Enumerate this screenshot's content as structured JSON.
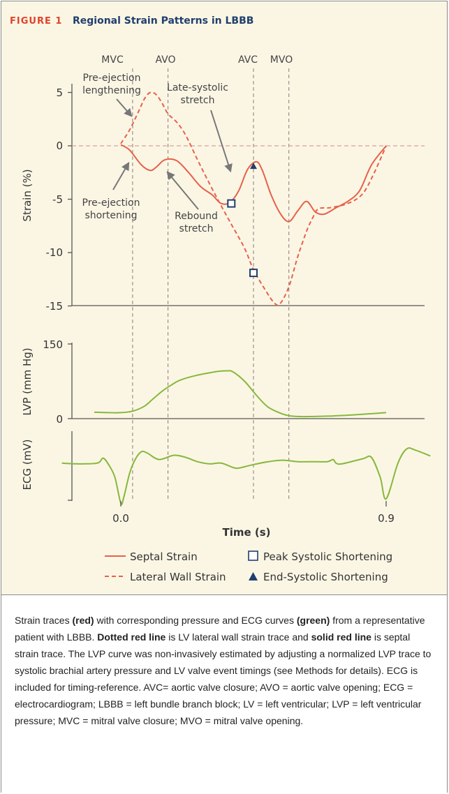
{
  "figure": {
    "label": "FIGURE 1",
    "title": "Regional Strain Patterns in LBBB"
  },
  "colors": {
    "strain": "#e8604a",
    "pressure_ecg": "#86b83c",
    "events": "#8a7a7a",
    "marker": "#1f3f6e",
    "header_bg": "#fbf6e4",
    "label_red": "#e0422b",
    "title_blue": "#1f3f6e"
  },
  "chart_data": [
    {
      "type": "line",
      "xlabel": "",
      "ylabel": "Strain (%)",
      "x_axis": "time (s)",
      "xlim": [
        -0.2,
        1.08
      ],
      "ylim": [
        -15,
        6
      ],
      "yticks": [
        5,
        0,
        -5,
        -10,
        -15
      ],
      "ytick_labels": [
        "5",
        "0",
        "-5",
        "-10",
        "-15"
      ],
      "zero_line": true,
      "events": [
        {
          "label": "MVC",
          "x": 0.04
        },
        {
          "label": "AVO",
          "x": 0.16
        },
        {
          "label": "AVC",
          "x": 0.45
        },
        {
          "label": "MVO",
          "x": 0.57
        }
      ],
      "series": [
        {
          "name": "Septal Strain",
          "style": "solid",
          "x": [
            0.0,
            0.03,
            0.07,
            0.1,
            0.12,
            0.15,
            0.19,
            0.23,
            0.27,
            0.31,
            0.34,
            0.37,
            0.4,
            0.43,
            0.46,
            0.48,
            0.51,
            0.54,
            0.57,
            0.6,
            0.63,
            0.66,
            0.69,
            0.73,
            0.77,
            0.81,
            0.85,
            0.9
          ],
          "values": [
            0.1,
            -0.4,
            -1.8,
            -2.3,
            -2.0,
            -1.3,
            -1.4,
            -2.5,
            -3.8,
            -4.6,
            -5.4,
            -5.3,
            -4.2,
            -2.2,
            -1.5,
            -2.3,
            -4.6,
            -6.3,
            -7.1,
            -6.1,
            -5.2,
            -6.2,
            -6.4,
            -5.8,
            -5.2,
            -4.2,
            -1.8,
            0.0
          ]
        },
        {
          "name": "Lateral Wall Strain",
          "style": "dashed",
          "x": [
            0.0,
            0.03,
            0.06,
            0.08,
            0.1,
            0.12,
            0.14,
            0.16,
            0.19,
            0.22,
            0.26,
            0.3,
            0.34,
            0.38,
            0.42,
            0.45,
            0.49,
            0.52,
            0.54,
            0.57,
            0.6,
            0.63,
            0.65,
            0.67,
            0.71,
            0.77,
            0.82,
            0.86,
            0.9
          ],
          "values": [
            0.2,
            1.5,
            3.2,
            4.4,
            5.0,
            4.8,
            4.0,
            3.0,
            2.2,
            1.0,
            -1.3,
            -3.5,
            -5.6,
            -7.6,
            -9.6,
            -11.6,
            -13.5,
            -14.7,
            -14.8,
            -13.2,
            -10.4,
            -8.0,
            -6.8,
            -5.9,
            -5.8,
            -5.4,
            -4.5,
            -2.5,
            0.0
          ]
        }
      ],
      "markers": [
        {
          "kind": "peak-systolic",
          "series": "Septal Strain",
          "x": 0.375,
          "y": -5.4
        },
        {
          "kind": "end-systolic",
          "series": "Septal Strain",
          "x": 0.45,
          "y": -1.9
        },
        {
          "kind": "peak-systolic",
          "series": "Lateral Wall Strain",
          "x": 0.45,
          "y": -11.9
        }
      ],
      "annotations": [
        {
          "text": "Pre-ejection\nlengthening"
        },
        {
          "text": "Pre-ejection\nshortening"
        },
        {
          "text": "Late-systolic\nstretch"
        },
        {
          "text": "Rebound\nstretch"
        }
      ]
    },
    {
      "type": "line",
      "ylabel": "LVP (mm Hg)",
      "ylim": [
        0,
        150
      ],
      "yticks": [
        150,
        0
      ],
      "ytick_labels": [
        "150",
        "0"
      ],
      "series": [
        {
          "name": "",
          "x": [
            -0.09,
            -0.04,
            0.0,
            0.04,
            0.08,
            0.11,
            0.14,
            0.17,
            0.2,
            0.25,
            0.3,
            0.33,
            0.36,
            0.38,
            0.42,
            0.46,
            0.5,
            0.55,
            0.58,
            0.62,
            0.7,
            0.8,
            0.9
          ],
          "values": [
            13,
            12,
            12,
            15,
            25,
            40,
            55,
            67,
            77,
            86,
            92,
            95,
            96,
            94,
            75,
            47,
            23,
            9,
            5,
            4,
            5,
            8,
            12
          ]
        }
      ]
    },
    {
      "type": "line",
      "ylabel": "ECG (mV)",
      "xlabel": "Time (s)",
      "xticks": [
        0.0,
        0.9
      ],
      "xtick_labels": [
        "0.0",
        "0.9"
      ],
      "series": [
        {
          "name": "",
          "x": [
            -0.2,
            -0.15,
            -0.08,
            -0.06,
            -0.04,
            -0.02,
            0.0,
            0.01,
            0.03,
            0.05,
            0.07,
            0.09,
            0.13,
            0.18,
            0.22,
            0.26,
            0.3,
            0.34,
            0.38,
            0.4,
            0.44,
            0.5,
            0.55,
            0.6,
            0.65,
            0.7,
            0.72,
            0.73,
            0.75,
            0.82,
            0.85,
            0.88,
            0.9,
            0.94,
            0.97,
            1.0,
            1.05
          ],
          "values": [
            0.5,
            0.45,
            0.5,
            0.85,
            0.35,
            -0.5,
            -2.3,
            -1.9,
            -0.2,
            0.8,
            1.3,
            1.2,
            0.75,
            1.05,
            0.9,
            0.6,
            0.45,
            0.5,
            0.2,
            0.15,
            0.35,
            0.6,
            0.7,
            0.6,
            0.6,
            0.6,
            0.75,
            0.5,
            0.45,
            0.8,
            0.9,
            -0.5,
            -2.0,
            0.5,
            1.5,
            1.4,
            1.0
          ]
        }
      ]
    }
  ],
  "axes": {
    "strain_ylabel": "Strain (%)",
    "lvp_ylabel": "LVP (mm Hg)",
    "ecg_ylabel": "ECG (mV)",
    "time_label": "Time (s)",
    "x0_label": "0.0",
    "x1_label": "0.9",
    "y5": "5",
    "y0": "0",
    "ym5": "-5",
    "ym10": "-10",
    "ym15": "-15",
    "lvp150": "150",
    "lvp0": "0"
  },
  "events": {
    "mvc": "MVC",
    "avo": "AVO",
    "avc": "AVC",
    "mvo": "MVO"
  },
  "annotations": {
    "pre_ej_len_1": "Pre-ejection",
    "pre_ej_len_2": "lengthening",
    "pre_ej_sh_1": "Pre-ejection",
    "pre_ej_sh_2": "shortening",
    "late_sys_1": "Late-systolic",
    "late_sys_2": "stretch",
    "rebound_1": "Rebound",
    "rebound_2": "stretch"
  },
  "legend": {
    "septal": "Septal Strain",
    "lateral": "Lateral Wall Strain",
    "peak": "Peak Systolic Shortening",
    "end": "End-Systolic Shortening"
  },
  "caption": {
    "t1": "Strain traces ",
    "b1": "(red)",
    "t2": " with corresponding pressure and ECG curves ",
    "b2": "(green)",
    "t3": " from a representative patient with LBBB. ",
    "b3": "Dotted red line",
    "t4": " is LV lateral wall strain trace and ",
    "b4": "solid red line",
    "t5": " is septal strain trace. The LVP curve was non-invasively estimated by adjusting a normalized LVP trace to systolic brachial artery pressure and LV valve event timings (see Methods for details). ECG is included for timing-reference. AVC= aortic valve closure; AVO = aortic valve opening; ECG = electrocardiogram; LBBB = left bundle branch block; LV = left ventricular; LVP = left ventricular pressure; MVC = mitral valve closure; MVO = mitral valve opening."
  }
}
